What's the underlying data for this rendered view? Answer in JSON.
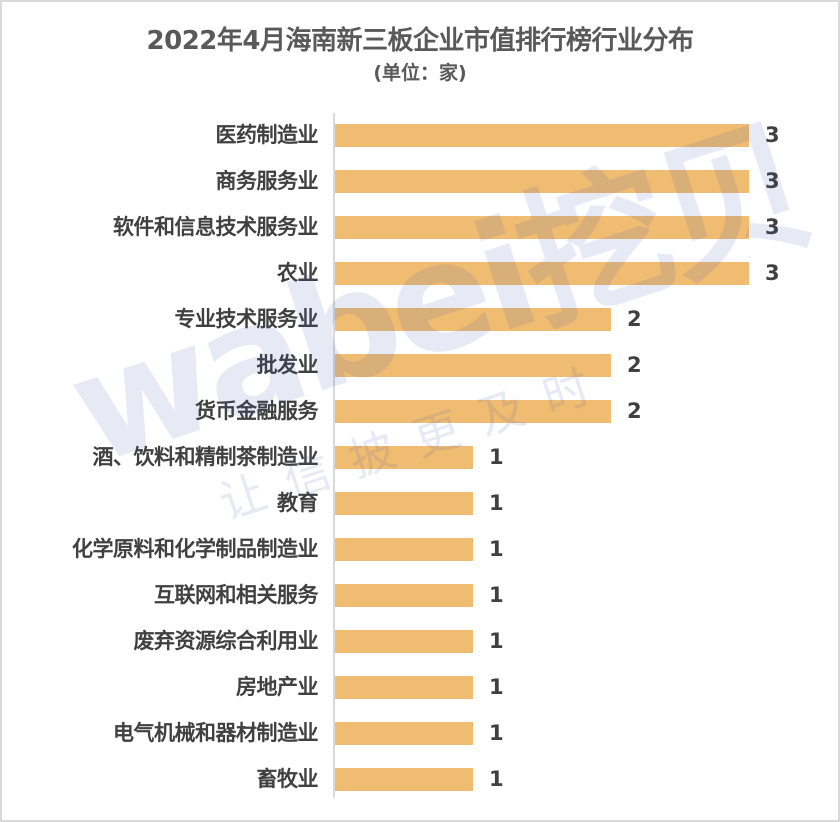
{
  "chart": {
    "title": "2022年4月海南新三板企业市值排行榜行业分布",
    "subtitle": "(单位：家)",
    "bar_color": "#F0BC72",
    "watermark": {
      "main": "wabei挖贝",
      "sub": "让信披更及时"
    }
  },
  "rows": [
    {
      "label": "医药制造业",
      "value": "3"
    },
    {
      "label": "商务服务业",
      "value": "3"
    },
    {
      "label": "软件和信息技术服务业",
      "value": "3"
    },
    {
      "label": "农业",
      "value": "3"
    },
    {
      "label": "专业技术服务业",
      "value": "2"
    },
    {
      "label": "批发业",
      "value": "2"
    },
    {
      "label": "货币金融服务",
      "value": "2"
    },
    {
      "label": "酒、饮料和精制茶制造业",
      "value": "1"
    },
    {
      "label": "教育",
      "value": "1"
    },
    {
      "label": "化学原料和化学制品制造业",
      "value": "1"
    },
    {
      "label": "互联网和相关服务",
      "value": "1"
    },
    {
      "label": "废弃资源综合利用业",
      "value": "1"
    },
    {
      "label": "房地产业",
      "value": "1"
    },
    {
      "label": "电气机械和器材制造业",
      "value": "1"
    },
    {
      "label": "畜牧业",
      "value": "1"
    }
  ],
  "chart_data": {
    "type": "bar",
    "orientation": "horizontal",
    "title": "2022年4月海南新三板企业市值排行榜行业分布",
    "subtitle": "(单位：家)",
    "xlabel": "",
    "ylabel": "",
    "categories": [
      "医药制造业",
      "商务服务业",
      "软件和信息技术服务业",
      "农业",
      "专业技术服务业",
      "批发业",
      "货币金融服务",
      "酒、饮料和精制茶制造业",
      "教育",
      "化学原料和化学制品制造业",
      "互联网和相关服务",
      "废弃资源综合利用业",
      "房地产业",
      "电气机械和器材制造业",
      "畜牧业"
    ],
    "values": [
      3,
      3,
      3,
      3,
      2,
      2,
      2,
      1,
      1,
      1,
      1,
      1,
      1,
      1,
      1
    ],
    "xlim": [
      0,
      3
    ],
    "grid": false,
    "legend": "none",
    "data_labels": true
  }
}
